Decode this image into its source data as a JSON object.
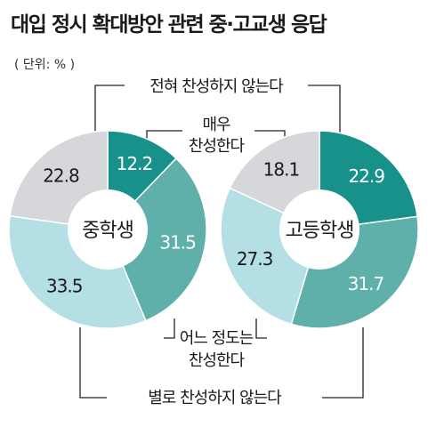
{
  "title": "대입 정시 확대방안 관련 중·고교생 응답",
  "unit": "( 단위: % )",
  "callouts": {
    "strong_oppose": "전혀 찬성하지 않는다",
    "strong_agree_line1": "매우",
    "strong_agree_line2": "찬성한다",
    "some_agree_line1": "어느 정도는",
    "some_agree_line2": "찬성한다",
    "disagree": "별로 찬성하지 않는다"
  },
  "colors": {
    "strong_agree": "#17918a",
    "some_agree": "#5fafaa",
    "disagree": "#b4dfe4",
    "strong_oppose": "#d5d7da"
  },
  "chart_data": [
    {
      "type": "pie",
      "title": "중학생",
      "slices": [
        {
          "label": "매우 찬성한다",
          "value": 12.2,
          "display": "12.2"
        },
        {
          "label": "어느 정도는 찬성한다",
          "value": 31.5,
          "display": "31.5"
        },
        {
          "label": "별로 찬성하지 않는다",
          "value": 33.5,
          "display": "33.5"
        },
        {
          "label": "전혀 찬성하지 않는다",
          "value": 22.8,
          "display": "22.8"
        }
      ]
    },
    {
      "type": "pie",
      "title": "고등학생",
      "slices": [
        {
          "label": "매우 찬성한다",
          "value": 22.9,
          "display": "22.9"
        },
        {
          "label": "어느 정도는 찬성한다",
          "value": 31.7,
          "display": "31.7"
        },
        {
          "label": "별로 찬성하지 않는다",
          "value": 27.3,
          "display": "27.3"
        },
        {
          "label": "전혀 찬성하지 않는다",
          "value": 18.1,
          "display": "18.1"
        }
      ]
    }
  ]
}
